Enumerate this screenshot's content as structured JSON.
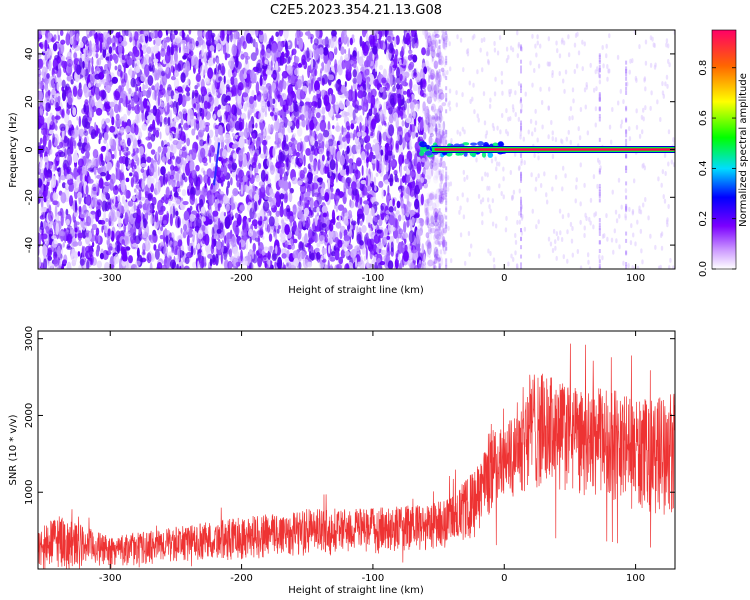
{
  "title": "C2E5.2023.354.21.13.G08",
  "chart_data": [
    {
      "type": "heatmap",
      "xlabel": "Height of straight line (km)",
      "ylabel": "Frequency (Hz)",
      "xlim": [
        -355,
        130
      ],
      "ylim": [
        -50,
        50
      ],
      "xticks": [
        -300,
        -200,
        -100,
        0,
        100
      ],
      "yticks": [
        -40,
        -20,
        0,
        20,
        40
      ],
      "colorbar": {
        "label": "Normalized spectral amplitude",
        "range": [
          0,
          0.95
        ],
        "ticks": [
          0.0,
          0.2,
          0.4,
          0.6,
          0.8
        ]
      },
      "noise_region_x": [
        -355,
        -50
      ],
      "signal_line": {
        "x_start": -65,
        "x_end": 130,
        "frequency": 0,
        "amplitude": 0.95
      },
      "grid": false
    },
    {
      "type": "line",
      "xlabel": "Height of straight line (km)",
      "ylabel": "SNR (10 * v/v)",
      "xlim": [
        -355,
        130
      ],
      "ylim": [
        0,
        3100
      ],
      "xticks": [
        -300,
        -200,
        -100,
        0,
        100
      ],
      "yticks": [
        1000,
        2000,
        3000
      ],
      "series": [
        {
          "color": "#ee3333",
          "envelope": {
            "x": [
              -355,
              -340,
              -300,
              -250,
              -200,
              -150,
              -100,
              -60,
              -40,
              -20,
              -10,
              0,
              20,
              40,
              60,
              80,
              100,
              130
            ],
            "upper": [
              500,
              700,
              420,
              550,
              680,
              780,
              800,
              840,
              950,
              1350,
              1900,
              1800,
              2600,
              2500,
              2300,
              2400,
              2200,
              2300
            ],
            "lower": [
              10,
              10,
              30,
              80,
              120,
              160,
              200,
              220,
              280,
              400,
              700,
              900,
              1000,
              1000,
              900,
              900,
              700,
              700
            ]
          }
        }
      ],
      "grid": false
    }
  ]
}
